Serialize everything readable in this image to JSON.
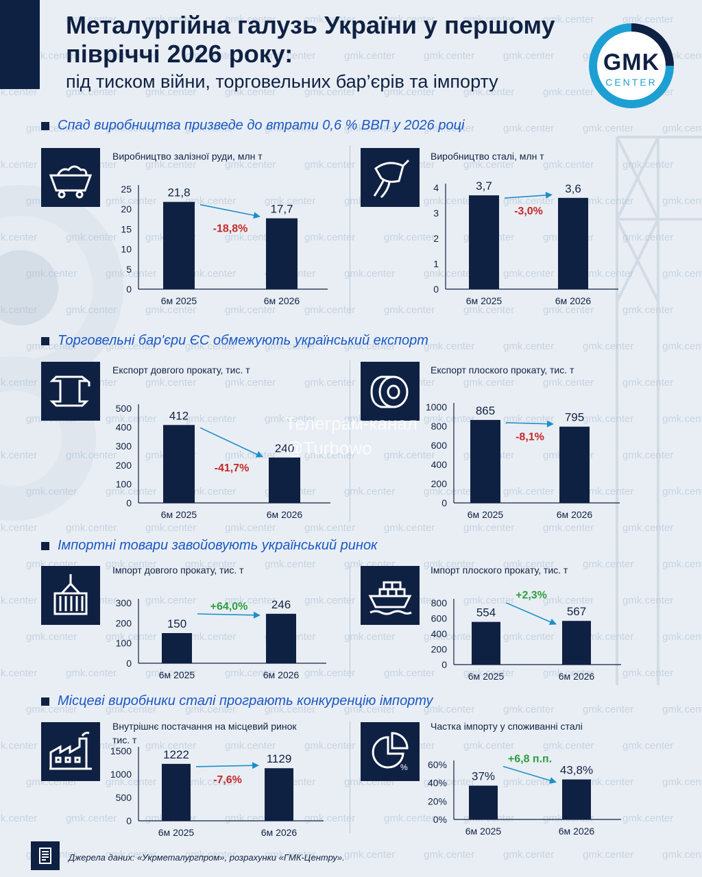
{
  "header": {
    "title": "Металургійна галузь України у першому півріччі 2026 року:",
    "subtitle": "під тиском війни, торговельних бар’єрів та імпорту",
    "logo_main": "GMK",
    "logo_sub": "CENTER"
  },
  "watermark": "gmk.center",
  "overlay": {
    "line1": "Телеграм-канал",
    "line2": "@Turbowo"
  },
  "sections": [
    {
      "title": "Спад виробництва призведе до втрати 0,6 % ВВП у 2026 році"
    },
    {
      "title": "Торговельні бар'єри ЄС обмежують український експорт"
    },
    {
      "title": "Імпортні товари завойовують український ринок"
    },
    {
      "title": "Місцеві виробники сталі програють конкуренцію імпорту"
    }
  ],
  "icons": [
    "mine-cart-icon",
    "ladle-icon",
    "i-beam-icon",
    "steel-coil-icon",
    "container-crane-icon",
    "cargo-ship-icon",
    "factory-icon",
    "pie-chart-icon"
  ],
  "colors": {
    "bar": "#0f2143",
    "negative": "#c62828",
    "positive": "#2e9e3e",
    "arrow": "#1d8fc7",
    "accent": "#1a58c4"
  },
  "chart_data": [
    {
      "type": "bar",
      "title": "Виробництво залізної руди, млн т",
      "categories": [
        "6м 2025",
        "6м 2026"
      ],
      "values": [
        21.8,
        17.7
      ],
      "labels": [
        "21,8",
        "17,7"
      ],
      "ylim": [
        0,
        25
      ],
      "ticks": [
        "0",
        "5",
        "10",
        "15",
        "20",
        "25"
      ],
      "change": "-18,8%",
      "direction": "down"
    },
    {
      "type": "bar",
      "title": "Виробництво сталі, млн т",
      "categories": [
        "6м 2025",
        "6м 2026"
      ],
      "values": [
        3.7,
        3.6
      ],
      "labels": [
        "3,7",
        "3,6"
      ],
      "ylim": [
        0,
        4
      ],
      "ticks": [
        "0",
        "1",
        "2",
        "3",
        "4"
      ],
      "change": "-3,0%",
      "direction": "down"
    },
    {
      "type": "bar",
      "title": "Експорт довгого прокату, тис. т",
      "categories": [
        "6м 2025",
        "6м 2026"
      ],
      "values": [
        412,
        240
      ],
      "labels": [
        "412",
        "240"
      ],
      "ylim": [
        0,
        500
      ],
      "ticks": [
        "0",
        "100",
        "200",
        "300",
        "400",
        "500"
      ],
      "change": "-41,7%",
      "direction": "down"
    },
    {
      "type": "bar",
      "title": "Експорт плоского прокату, тис. т",
      "categories": [
        "6м 2025",
        "6м 2026"
      ],
      "values": [
        865,
        795
      ],
      "labels": [
        "865",
        "795"
      ],
      "ylim": [
        0,
        1000
      ],
      "ticks": [
        "0",
        "200",
        "400",
        "600",
        "800",
        "1000"
      ],
      "change": "-8,1%",
      "direction": "down"
    },
    {
      "type": "bar",
      "title": "Імпорт довгого прокату, тис. т",
      "categories": [
        "6м 2025",
        "6м 2026"
      ],
      "values": [
        150,
        246
      ],
      "labels": [
        "150",
        "246"
      ],
      "ylim": [
        0,
        300
      ],
      "ticks": [
        "0",
        "100",
        "200",
        "300"
      ],
      "change": "+64,0%",
      "direction": "up"
    },
    {
      "type": "bar",
      "title": "Імпорт плоского прокату, тис. т",
      "categories": [
        "6м 2025",
        "6м 2026"
      ],
      "values": [
        554,
        567
      ],
      "labels": [
        "554",
        "567"
      ],
      "ylim": [
        0,
        800
      ],
      "ticks": [
        "0",
        "200",
        "400",
        "600",
        "800"
      ],
      "change": "+2,3%",
      "direction": "up"
    },
    {
      "type": "bar",
      "title": "Внутрішнє постачання на місцевий ринок",
      "ylabel": "тис. т",
      "categories": [
        "6м 2025",
        "6м 2026"
      ],
      "values": [
        1222,
        1129
      ],
      "labels": [
        "1222",
        "1129"
      ],
      "ylim": [
        0,
        1500
      ],
      "ticks": [
        "0",
        "500",
        "1000",
        "1500"
      ],
      "change": "-7,6%",
      "direction": "down"
    },
    {
      "type": "bar",
      "title": "Частка імпорту у споживанні сталі",
      "categories": [
        "6м 2025",
        "6м 2026"
      ],
      "values": [
        37,
        43.8
      ],
      "labels": [
        "37%",
        "43,8%"
      ],
      "ylim": [
        0,
        60
      ],
      "ticks": [
        "0%",
        "20%",
        "40%",
        "60%"
      ],
      "change": "+6,8 п.п.",
      "direction": "up"
    }
  ],
  "footer": {
    "text": "Джерела даних: «Укрметалургпром», розрахунки «ГМК-Центру»."
  }
}
